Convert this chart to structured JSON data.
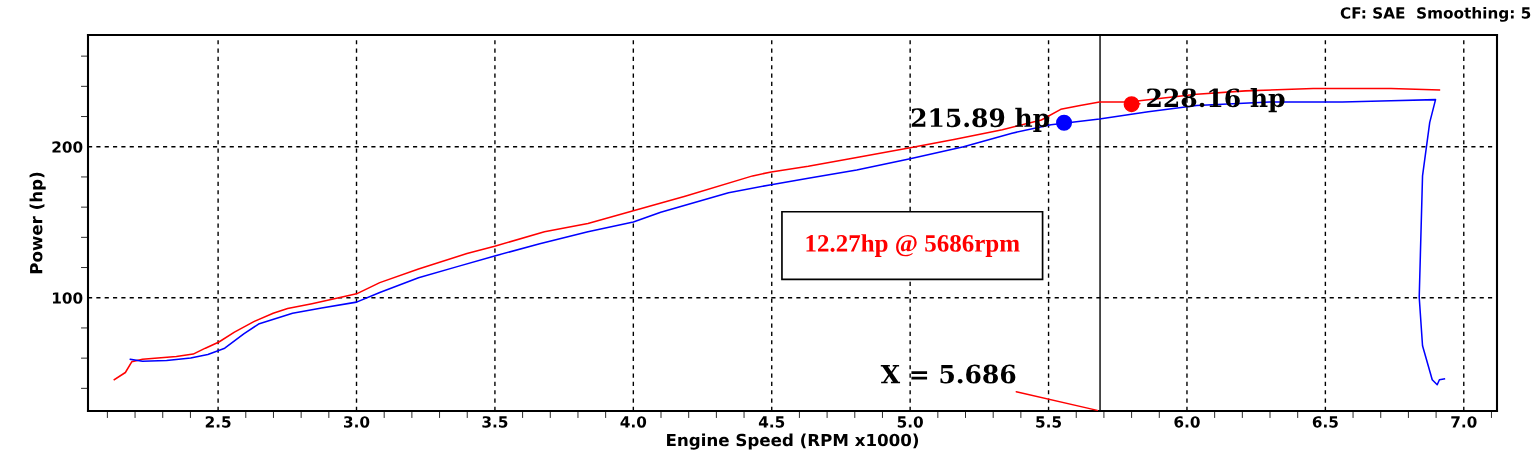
{
  "chart_data": {
    "type": "line",
    "xlabel": "Engine Speed (RPM x1000)",
    "ylabel": "Power (hp)",
    "xlim": [
      2.03,
      7.12
    ],
    "ylim": [
      25,
      274
    ],
    "grid": true,
    "marker": "none",
    "line_style": "solid",
    "xticks": [
      {
        "value": 2.1,
        "label": null
      },
      {
        "value": 2.2,
        "label": null
      },
      {
        "value": 2.3,
        "label": null
      },
      {
        "value": 2.4,
        "label": null
      },
      {
        "value": 2.5,
        "label": "2.5"
      },
      {
        "value": 2.6,
        "label": null
      },
      {
        "value": 2.7,
        "label": null
      },
      {
        "value": 2.8,
        "label": null
      },
      {
        "value": 2.9,
        "label": null
      },
      {
        "value": 3.0,
        "label": "3.0"
      },
      {
        "value": 3.1,
        "label": null
      },
      {
        "value": 3.2,
        "label": null
      },
      {
        "value": 3.3,
        "label": null
      },
      {
        "value": 3.4,
        "label": null
      },
      {
        "value": 3.5,
        "label": "3.5"
      },
      {
        "value": 3.6,
        "label": null
      },
      {
        "value": 3.7,
        "label": null
      },
      {
        "value": 3.8,
        "label": null
      },
      {
        "value": 3.9,
        "label": null
      },
      {
        "value": 4.0,
        "label": "4.0"
      },
      {
        "value": 4.1,
        "label": null
      },
      {
        "value": 4.2,
        "label": null
      },
      {
        "value": 4.3,
        "label": null
      },
      {
        "value": 4.4,
        "label": null
      },
      {
        "value": 4.5,
        "label": "4.5"
      },
      {
        "value": 4.6,
        "label": null
      },
      {
        "value": 4.7,
        "label": null
      },
      {
        "value": 4.8,
        "label": null
      },
      {
        "value": 4.9,
        "label": null
      },
      {
        "value": 5.0,
        "label": "5.0"
      },
      {
        "value": 5.1,
        "label": null
      },
      {
        "value": 5.2,
        "label": null
      },
      {
        "value": 5.3,
        "label": null
      },
      {
        "value": 5.4,
        "label": null
      },
      {
        "value": 5.5,
        "label": "5.5"
      },
      {
        "value": 5.6,
        "label": null
      },
      {
        "value": 5.7,
        "label": null
      },
      {
        "value": 5.8,
        "label": null
      },
      {
        "value": 5.9,
        "label": null
      },
      {
        "value": 6.0,
        "label": "6.0"
      },
      {
        "value": 6.1,
        "label": null
      },
      {
        "value": 6.2,
        "label": null
      },
      {
        "value": 6.3,
        "label": null
      },
      {
        "value": 6.4,
        "label": null
      },
      {
        "value": 6.5,
        "label": "6.5"
      },
      {
        "value": 6.6,
        "label": null
      },
      {
        "value": 6.7,
        "label": null
      },
      {
        "value": 6.8,
        "label": null
      },
      {
        "value": 6.9,
        "label": null
      },
      {
        "value": 7.0,
        "label": "7.0"
      },
      {
        "value": 7.1,
        "label": null
      }
    ],
    "yticks": [
      {
        "value": 40,
        "label": null
      },
      {
        "value": 60,
        "label": null
      },
      {
        "value": 80,
        "label": null
      },
      100,
      {
        "value": 120,
        "label": null
      },
      {
        "value": 140,
        "label": null
      },
      {
        "value": 160,
        "label": null
      },
      {
        "value": 180,
        "label": null
      },
      200,
      {
        "value": 220,
        "label": null
      },
      {
        "value": 240,
        "label": null
      },
      {
        "value": 260,
        "label": null
      }
    ],
    "series": [
      {
        "color": "#ff0000",
        "x": [
          2.125,
          2.165,
          2.188,
          2.227,
          2.349,
          2.41,
          2.454,
          2.503,
          2.559,
          2.629,
          2.699,
          2.751,
          2.839,
          2.944,
          3.0,
          3.084,
          3.224,
          3.399,
          3.499,
          3.679,
          3.836,
          4.0,
          4.187,
          4.431,
          4.498,
          4.632,
          4.807,
          5.0,
          5.158,
          5.333,
          5.474,
          5.544,
          5.614,
          5.684,
          5.789,
          6.035,
          6.211,
          6.456,
          6.737,
          6.912
        ],
        "values": [
          45.7,
          50.5,
          57.6,
          59.2,
          61.1,
          62.7,
          66.6,
          70.7,
          77.2,
          84.2,
          89.7,
          92.9,
          96.1,
          100.3,
          102.6,
          110.0,
          119.0,
          129.3,
          134.1,
          143.7,
          149.2,
          157.6,
          167.2,
          180.7,
          183.3,
          187.1,
          192.9,
          199.4,
          204.8,
          211.3,
          217.7,
          224.8,
          227.3,
          229.6,
          229.6,
          234.7,
          237.0,
          238.6,
          238.6,
          237.6
        ]
      },
      {
        "color": "#0000ff",
        "x": [
          2.183,
          2.227,
          2.314,
          2.401,
          2.463,
          2.524,
          2.594,
          2.646,
          2.769,
          2.874,
          3.0,
          3.084,
          3.224,
          3.364,
          3.499,
          3.662,
          3.836,
          4.0,
          4.099,
          4.344,
          4.498,
          4.632,
          4.807,
          5.0,
          5.193,
          5.368,
          5.509,
          5.684,
          5.86,
          6.035,
          6.298,
          6.561,
          6.737,
          6.898,
          6.877,
          6.851,
          6.839,
          6.851,
          6.886,
          6.904,
          6.912,
          6.93
        ],
        "values": [
          59.2,
          57.9,
          58.5,
          60.1,
          62.4,
          66.6,
          76.2,
          82.6,
          89.7,
          93.2,
          97.1,
          103.5,
          113.2,
          120.6,
          127.7,
          135.7,
          143.7,
          150.2,
          156.6,
          169.5,
          174.9,
          179.1,
          184.6,
          192.0,
          200.0,
          209.0,
          214.5,
          218.3,
          223.2,
          227.3,
          229.6,
          229.6,
          230.5,
          231.2,
          216.1,
          180.7,
          100.3,
          68.2,
          45.7,
          42.4,
          45.7,
          46.3
        ]
      },
      {
        "type": "scatter",
        "marker": "circle",
        "color": "#ff0000",
        "x": [
          5.8
        ],
        "values": [
          228.16
        ]
      },
      {
        "type": "scatter",
        "marker": "circle",
        "color": "#0000ff",
        "x": [
          5.556
        ],
        "values": [
          215.89
        ]
      }
    ],
    "ref_lines": [
      {
        "axis": "x",
        "value": 5.686,
        "color": "#000000",
        "line_style": "solid"
      }
    ],
    "annotations": [
      "CF: SAE  Smoothing: 5",
      "12.27hp @ 5686rpm",
      {
        "text": "228.16 hp",
        "x": 5.8,
        "y": 228.16
      },
      {
        "text": "215.89 hp",
        "x": 5.556,
        "y": 215.89
      },
      {
        "text": "X = 5.686",
        "x": 5.686,
        "y": 25
      }
    ]
  }
}
